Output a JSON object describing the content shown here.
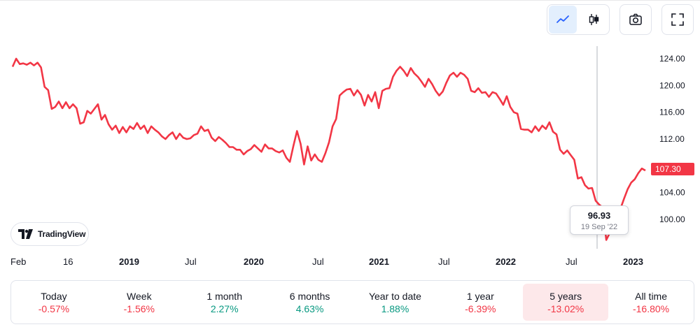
{
  "toolbar": {
    "chart_type_buttons": [
      {
        "icon": "line-chart-icon",
        "active": true
      },
      {
        "icon": "candlestick-icon",
        "active": false
      }
    ],
    "snapshot_icon": "camera-icon",
    "fullscreen_icon": "fullscreen-icon"
  },
  "branding": {
    "tradingview_label": "TradingView"
  },
  "tooltip": {
    "value": "96.93",
    "date": "19 Sep '22"
  },
  "last_price": "107.30",
  "colors": {
    "line": "#f23645",
    "positive": "#089981",
    "negative": "#f23645",
    "accent": "#2962ff"
  },
  "chart_data": {
    "type": "line",
    "y_ticks": [
      "124.00",
      "120.00",
      "116.00",
      "112.00",
      "108.00",
      "104.00",
      "100.00"
    ],
    "ylim": [
      96,
      126
    ],
    "x_ticks": [
      {
        "label": "Feb",
        "bold": false
      },
      {
        "label": "16",
        "bold": false
      },
      {
        "label": "2019",
        "bold": true
      },
      {
        "label": "Jul",
        "bold": false
      },
      {
        "label": "2020",
        "bold": true
      },
      {
        "label": "Jul",
        "bold": false
      },
      {
        "label": "2021",
        "bold": true
      },
      {
        "label": "Jul",
        "bold": false
      },
      {
        "label": "2022",
        "bold": true
      },
      {
        "label": "Jul",
        "bold": false
      },
      {
        "label": "2023",
        "bold": true
      }
    ],
    "series": [
      {
        "values": [
          122.8,
          124.0,
          123.2,
          123.3,
          123.1,
          123.4,
          123.0,
          123.4,
          122.7,
          119.8,
          119.3,
          116.5,
          116.8,
          117.6,
          116.6,
          117.5,
          116.6,
          117.2,
          116.6,
          114.3,
          114.5,
          116.2,
          115.8,
          116.5,
          117.2,
          114.9,
          115.6,
          114.2,
          113.4,
          114.0,
          112.9,
          113.8,
          113.0,
          113.9,
          113.5,
          114.4,
          113.5,
          114.0,
          112.9,
          113.9,
          113.4,
          113.0,
          112.4,
          112.0,
          112.6,
          113.0,
          112.0,
          112.8,
          112.2,
          112.0,
          112.1,
          112.6,
          112.8,
          113.9,
          113.2,
          113.4,
          112.2,
          111.7,
          112.3,
          111.9,
          111.4,
          110.8,
          110.8,
          110.4,
          110.4,
          109.7,
          110.2,
          110.5,
          111.1,
          110.6,
          110.1,
          111.2,
          110.6,
          110.6,
          110.2,
          110.0,
          110.3,
          109.2,
          108.6,
          111.0,
          113.2,
          111.3,
          108.2,
          110.9,
          108.8,
          109.7,
          108.9,
          108.6,
          109.9,
          111.5,
          113.9,
          115.0,
          118.5,
          119.0,
          119.4,
          119.5,
          118.5,
          119.3,
          118.6,
          117.0,
          118.6,
          117.6,
          119.0,
          116.6,
          119.2,
          119.5,
          119.6,
          121.3,
          122.2,
          122.8,
          122.2,
          121.4,
          122.6,
          121.8,
          121.3,
          120.6,
          119.8,
          121.0,
          120.2,
          119.2,
          118.5,
          119.1,
          120.4,
          121.5,
          121.9,
          121.3,
          121.9,
          121.6,
          121.0,
          119.2,
          119.0,
          119.6,
          118.9,
          119.0,
          118.3,
          119.0,
          118.8,
          118.0,
          117.1,
          118.4,
          116.8,
          116.0,
          115.8,
          113.5,
          113.4,
          113.4,
          113.0,
          113.9,
          113.2,
          114.0,
          113.5,
          114.5,
          113.1,
          112.7,
          110.4,
          109.8,
          110.3,
          109.6,
          108.9,
          106.1,
          106.3,
          105.1,
          104.6,
          104.7,
          102.8,
          102.2,
          101.8,
          96.93,
          98.0,
          98.4,
          100.1,
          101.6,
          103.1,
          104.5,
          105.5,
          106.0,
          106.9,
          107.6,
          107.3
        ]
      }
    ]
  },
  "periods": [
    {
      "label": "Today",
      "value": "-0.57%",
      "sign": "neg"
    },
    {
      "label": "Week",
      "value": "-1.56%",
      "sign": "neg"
    },
    {
      "label": "1 month",
      "value": "2.27%",
      "sign": "pos"
    },
    {
      "label": "6 months",
      "value": "4.63%",
      "sign": "pos"
    },
    {
      "label": "Year to date",
      "value": "1.88%",
      "sign": "pos"
    },
    {
      "label": "1 year",
      "value": "-6.39%",
      "sign": "neg"
    },
    {
      "label": "5 years",
      "value": "-13.02%",
      "sign": "neg",
      "selected": true
    },
    {
      "label": "All time",
      "value": "-16.80%",
      "sign": "neg"
    }
  ]
}
